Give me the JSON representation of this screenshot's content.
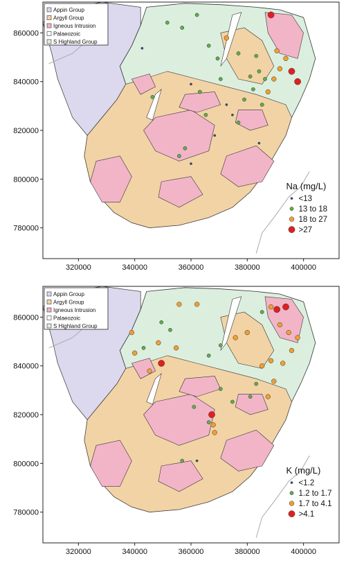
{
  "geology_legend": [
    {
      "label": "Appin Group",
      "color": "#dcd8ee"
    },
    {
      "label": "Argyll Group",
      "color": "#f2d3a6"
    },
    {
      "label": "Igneous Intrusion",
      "color": "#f2b5c8"
    },
    {
      "label": "Palaeozoic",
      "color": "#ffffff"
    },
    {
      "label": "S Highland Group",
      "color": "#dcefdf"
    }
  ],
  "colors": {
    "appin": "#dcd8ee",
    "argyll": "#f2d3a6",
    "igneous": "#f2b5c8",
    "shg": "#dcefdf",
    "frame": "#222222",
    "coast": "#555555",
    "water": "#ffffff",
    "river": "#aaaaaa"
  },
  "y_ticks": [
    "860000",
    "840000",
    "820000",
    "800000",
    "780000"
  ],
  "x_ticks": [
    "320000",
    "340000",
    "360000",
    "380000",
    "400000"
  ],
  "maps": [
    {
      "legend_title": "Na  (mg/L)",
      "classes": [
        {
          "label": "<13",
          "color": "#3d4a8a",
          "r": 1.6
        },
        {
          "label": "13 to 18",
          "color": "#5fae4a",
          "r": 2.6
        },
        {
          "label": "18 to 27",
          "color": "#f0a030",
          "r": 3.4
        },
        {
          "label": ">27",
          "color": "#e02020",
          "r": 4.6
        }
      ],
      "points": [
        [
          0.335,
          0.18,
          0
        ],
        [
          0.42,
          0.08,
          1
        ],
        [
          0.47,
          0.1,
          1
        ],
        [
          0.52,
          0.05,
          1
        ],
        [
          0.56,
          0.17,
          1
        ],
        [
          0.59,
          0.22,
          1
        ],
        [
          0.62,
          0.14,
          2
        ],
        [
          0.66,
          0.2,
          1
        ],
        [
          0.37,
          0.37,
          1
        ],
        [
          0.5,
          0.32,
          0
        ],
        [
          0.53,
          0.35,
          1
        ],
        [
          0.6,
          0.3,
          1
        ],
        [
          0.62,
          0.4,
          0
        ],
        [
          0.64,
          0.44,
          0
        ],
        [
          0.71,
          0.34,
          1
        ],
        [
          0.73,
          0.27,
          1
        ],
        [
          0.75,
          0.3,
          1
        ],
        [
          0.77,
          0.05,
          3
        ],
        [
          0.79,
          0.19,
          2
        ],
        [
          0.82,
          0.22,
          2
        ],
        [
          0.8,
          0.26,
          2
        ],
        [
          0.84,
          0.27,
          3
        ],
        [
          0.86,
          0.31,
          3
        ],
        [
          0.78,
          0.3,
          2
        ],
        [
          0.76,
          0.35,
          2
        ],
        [
          0.7,
          0.29,
          1
        ],
        [
          0.68,
          0.38,
          1
        ],
        [
          0.74,
          0.4,
          1
        ],
        [
          0.66,
          0.47,
          1
        ],
        [
          0.58,
          0.52,
          0
        ],
        [
          0.46,
          0.6,
          1
        ],
        [
          0.48,
          0.57,
          1
        ],
        [
          0.5,
          0.63,
          0
        ],
        [
          0.73,
          0.55,
          0
        ],
        [
          0.55,
          0.44,
          1
        ],
        [
          0.72,
          0.21,
          1
        ]
      ]
    },
    {
      "legend_title": "K  (mg/L)",
      "classes": [
        {
          "label": "<1.2",
          "color": "#3d4a8a",
          "r": 1.6
        },
        {
          "label": "1.2 to 1.7",
          "color": "#5fae4a",
          "r": 2.6
        },
        {
          "label": "1.7 to 4.1",
          "color": "#f0a030",
          "r": 3.4
        },
        {
          "label": ">4.1",
          "color": "#e02020",
          "r": 4.6
        }
      ],
      "points": [
        [
          0.3,
          0.18,
          2
        ],
        [
          0.31,
          0.26,
          2
        ],
        [
          0.34,
          0.24,
          1
        ],
        [
          0.4,
          0.14,
          1
        ],
        [
          0.46,
          0.07,
          2
        ],
        [
          0.52,
          0.07,
          2
        ],
        [
          0.43,
          0.17,
          1
        ],
        [
          0.45,
          0.24,
          2
        ],
        [
          0.4,
          0.3,
          3
        ],
        [
          0.39,
          0.22,
          2
        ],
        [
          0.36,
          0.33,
          2
        ],
        [
          0.56,
          0.27,
          1
        ],
        [
          0.6,
          0.23,
          1
        ],
        [
          0.65,
          0.2,
          2
        ],
        [
          0.69,
          0.18,
          2
        ],
        [
          0.74,
          0.1,
          1
        ],
        [
          0.77,
          0.08,
          2
        ],
        [
          0.79,
          0.09,
          3
        ],
        [
          0.82,
          0.08,
          3
        ],
        [
          0.8,
          0.15,
          2
        ],
        [
          0.83,
          0.18,
          2
        ],
        [
          0.86,
          0.2,
          2
        ],
        [
          0.84,
          0.25,
          2
        ],
        [
          0.81,
          0.3,
          2
        ],
        [
          0.77,
          0.29,
          2
        ],
        [
          0.74,
          0.31,
          2
        ],
        [
          0.78,
          0.37,
          2
        ],
        [
          0.72,
          0.38,
          1
        ],
        [
          0.7,
          0.43,
          1
        ],
        [
          0.64,
          0.45,
          1
        ],
        [
          0.6,
          0.4,
          1
        ],
        [
          0.57,
          0.5,
          3
        ],
        [
          0.575,
          0.54,
          2
        ],
        [
          0.58,
          0.57,
          2
        ],
        [
          0.56,
          0.53,
          1
        ],
        [
          0.51,
          0.47,
          1
        ],
        [
          0.47,
          0.68,
          1
        ],
        [
          0.52,
          0.68,
          0
        ],
        [
          0.76,
          0.43,
          2
        ]
      ]
    }
  ]
}
